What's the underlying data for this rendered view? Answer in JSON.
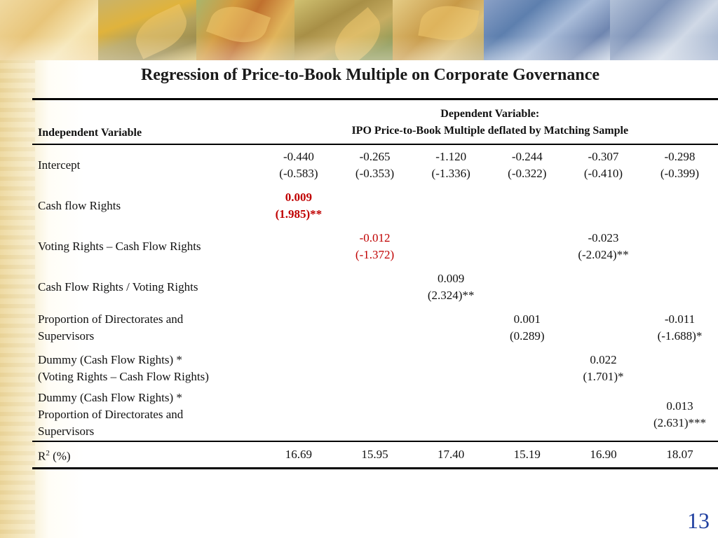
{
  "title": "Regression of Price-to-Book Multiple on Corporate Governance",
  "table": {
    "header": {
      "independent": "Independent Variable",
      "dependent_line1": "Dependent Variable:",
      "dependent_line2": "IPO Price-to-Book Multiple deflated by Matching Sample"
    },
    "rows": [
      {
        "label": "Intercept",
        "cells": [
          {
            "coef": "-0.440",
            "t": "(-0.583)"
          },
          {
            "coef": "-0.265",
            "t": "(-0.353)"
          },
          {
            "coef": "-1.120",
            "t": "(-1.336)"
          },
          {
            "coef": "-0.244",
            "t": "(-0.322)"
          },
          {
            "coef": "-0.307",
            "t": "(-0.410)"
          },
          {
            "coef": "-0.298",
            "t": "(-0.399)"
          }
        ]
      },
      {
        "label": "Cash flow Rights",
        "cells": [
          {
            "coef": "0.009",
            "t": "(1.985)**",
            "style": "red-bold"
          },
          {
            "coef": "",
            "t": ""
          },
          {
            "coef": "",
            "t": ""
          },
          {
            "coef": "",
            "t": ""
          },
          {
            "coef": "",
            "t": ""
          },
          {
            "coef": "",
            "t": ""
          }
        ]
      },
      {
        "label": "Voting Rights – Cash Flow Rights",
        "cells": [
          {
            "coef": "",
            "t": ""
          },
          {
            "coef": "-0.012",
            "t": "(-1.372)",
            "style": "red"
          },
          {
            "coef": "",
            "t": ""
          },
          {
            "coef": "",
            "t": ""
          },
          {
            "coef": "-0.023",
            "t": "(-2.024)**"
          },
          {
            "coef": "",
            "t": ""
          }
        ]
      },
      {
        "label": "Cash Flow Rights / Voting Rights",
        "cells": [
          {
            "coef": "",
            "t": ""
          },
          {
            "coef": "",
            "t": ""
          },
          {
            "coef": "0.009",
            "t": "(2.324)**"
          },
          {
            "coef": "",
            "t": ""
          },
          {
            "coef": "",
            "t": ""
          },
          {
            "coef": "",
            "t": ""
          }
        ]
      },
      {
        "label_lines": [
          "Proportion of Directorates and",
          "Supervisors"
        ],
        "cells": [
          {
            "coef": "",
            "t": ""
          },
          {
            "coef": "",
            "t": ""
          },
          {
            "coef": "",
            "t": ""
          },
          {
            "coef": "0.001",
            "t": "(0.289)"
          },
          {
            "coef": "",
            "t": ""
          },
          {
            "coef": "-0.011",
            "t": "(-1.688)*"
          }
        ]
      },
      {
        "label_lines": [
          "Dummy (Cash Flow Rights) *",
          "(Voting Rights – Cash Flow Rights)"
        ],
        "cells": [
          {
            "coef": "",
            "t": ""
          },
          {
            "coef": "",
            "t": ""
          },
          {
            "coef": "",
            "t": ""
          },
          {
            "coef": "",
            "t": ""
          },
          {
            "coef": "0.022",
            "t": "(1.701)*"
          },
          {
            "coef": "",
            "t": ""
          }
        ]
      },
      {
        "label_lines": [
          "Dummy (Cash Flow Rights) *",
          "Proportion of Directorates and",
          "Supervisors"
        ],
        "cells": [
          {
            "coef": "",
            "t": ""
          },
          {
            "coef": "",
            "t": ""
          },
          {
            "coef": "",
            "t": ""
          },
          {
            "coef": "",
            "t": ""
          },
          {
            "coef": "",
            "t": ""
          },
          {
            "coef": "0.013",
            "t": "(2.631)***"
          }
        ]
      }
    ],
    "r2": {
      "label": "R",
      "sup": "2",
      "suffix": " (%)",
      "values": [
        "16.69",
        "15.95",
        "17.40",
        "15.19",
        "16.90",
        "18.07"
      ]
    }
  },
  "page_number": "13"
}
